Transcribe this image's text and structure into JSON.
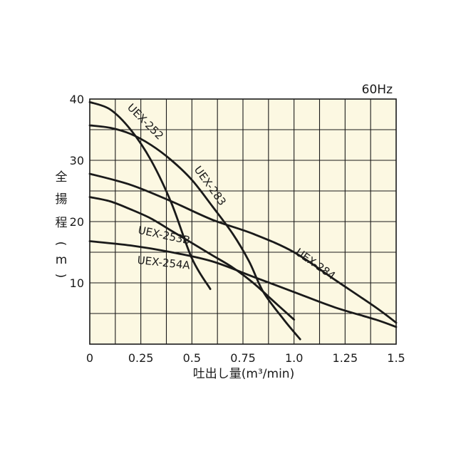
{
  "chart_data": {
    "type": "line",
    "frequency_label": "60Hz",
    "xlabel": "吐出し量(m³/min)",
    "ylabel_chars": [
      "全",
      "揚",
      "程",
      "(",
      "m",
      ")"
    ],
    "xlim": [
      0,
      1.5
    ],
    "ylim": [
      0,
      40
    ],
    "x_ticks": [
      "0",
      "0.25",
      "0.5",
      "0.75",
      "1.0",
      "1.25",
      "1.5"
    ],
    "x_tick_values": [
      0,
      0.25,
      0.5,
      0.75,
      1.0,
      1.25,
      1.5
    ],
    "y_ticks": [
      "10",
      "20",
      "30",
      "40"
    ],
    "y_tick_values": [
      10,
      20,
      30,
      40
    ],
    "grid": true,
    "background_color": "#fcf8e2",
    "line_color": "#1a1a1a",
    "series": [
      {
        "name": "UEX-252",
        "x": [
          0,
          0.1,
          0.2,
          0.3,
          0.4,
          0.5,
          0.59
        ],
        "y": [
          39.5,
          38.3,
          35.0,
          30.0,
          23.0,
          14.0,
          9.0
        ]
      },
      {
        "name": "UEX-283",
        "x": [
          0,
          0.1,
          0.2,
          0.3,
          0.4,
          0.5,
          0.6,
          0.7,
          0.78,
          0.85,
          0.95,
          1.03
        ],
        "y": [
          35.7,
          35.3,
          34.3,
          32.5,
          30.0,
          26.8,
          22.5,
          18.0,
          13.5,
          8.5,
          4.0,
          0.8
        ]
      },
      {
        "name": "UEX-284",
        "x": [
          0,
          0.2,
          0.4,
          0.6,
          0.8,
          1.0,
          1.2,
          1.4,
          1.5
        ],
        "y": [
          27.8,
          26.0,
          23.3,
          20.3,
          18.0,
          15.0,
          10.5,
          6.0,
          3.5
        ]
      },
      {
        "name": "UEX-253B",
        "x": [
          0,
          0.1,
          0.2,
          0.3,
          0.4,
          0.5,
          0.6,
          0.7,
          0.8,
          0.9,
          1.0
        ],
        "y": [
          24.0,
          23.3,
          22.0,
          20.5,
          18.5,
          16.5,
          14.5,
          12.5,
          10.0,
          7.0,
          4.0
        ]
      },
      {
        "name": "UEX-254A",
        "x": [
          0,
          0.2,
          0.4,
          0.6,
          0.8,
          1.0,
          1.2,
          1.4,
          1.5
        ],
        "y": [
          16.8,
          16.1,
          15.0,
          13.5,
          11.0,
          8.5,
          6.0,
          4.0,
          2.8
        ]
      }
    ]
  }
}
